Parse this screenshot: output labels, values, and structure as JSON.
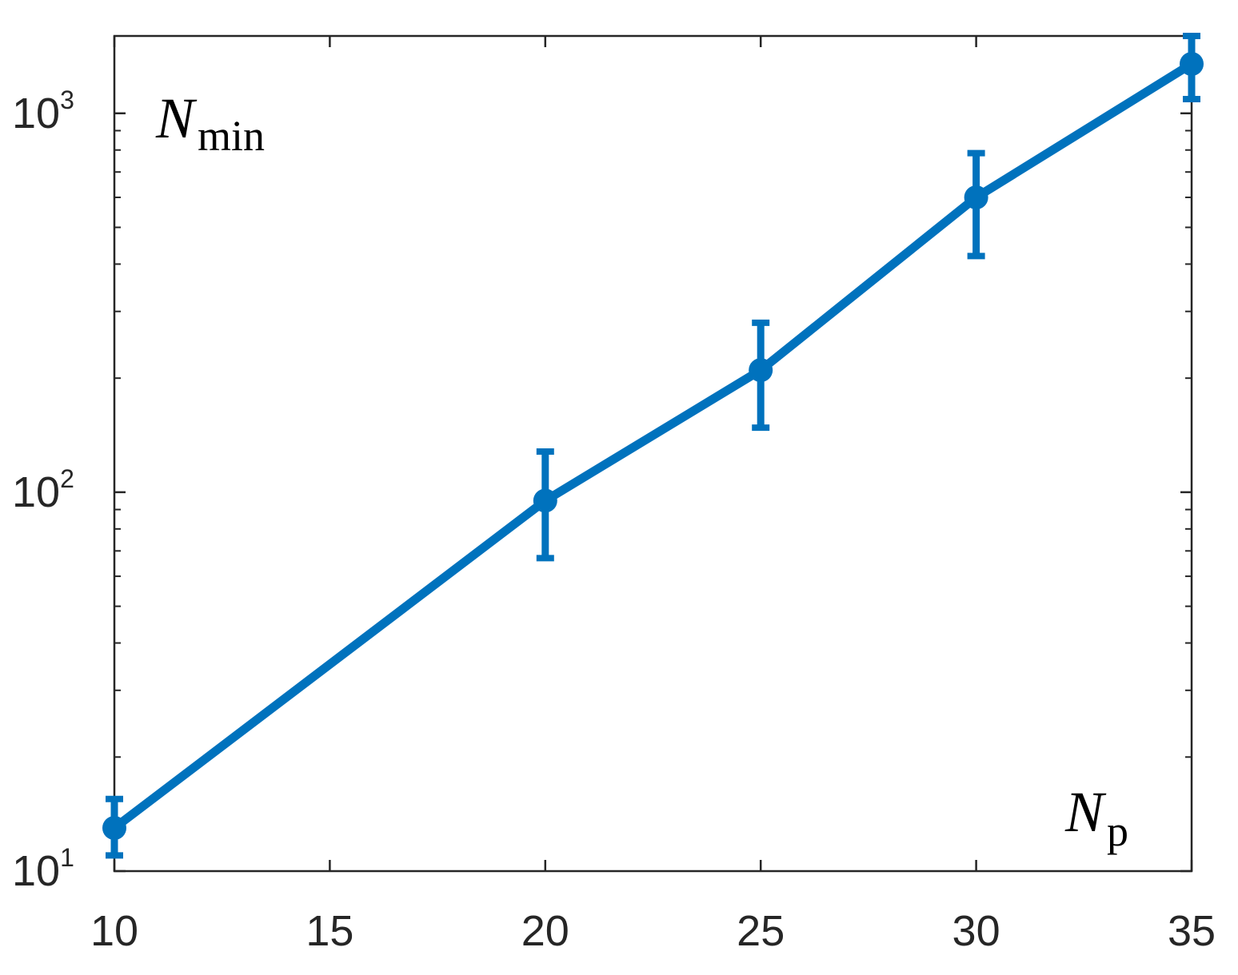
{
  "chart_data": {
    "type": "line",
    "title": "",
    "xlabel": {
      "main": "N",
      "sub": "p"
    },
    "ylabel": {
      "main": "N",
      "sub": "min"
    },
    "xlim": [
      10,
      35
    ],
    "ylim": [
      10,
      1600
    ],
    "yscale": "log",
    "grid": false,
    "color": "#0072BD",
    "x_ticks": [
      {
        "value": 10,
        "label": "10"
      },
      {
        "value": 15,
        "label": "15"
      },
      {
        "value": 20,
        "label": "20"
      },
      {
        "value": 25,
        "label": "25"
      },
      {
        "value": 30,
        "label": "30"
      },
      {
        "value": 35,
        "label": "35"
      }
    ],
    "y_ticks": [
      {
        "value": 10,
        "base": "10",
        "exp": "1"
      },
      {
        "value": 100,
        "base": "10",
        "exp": "2"
      },
      {
        "value": 1000,
        "base": "10",
        "exp": "3"
      }
    ],
    "series": [
      {
        "x": [
          10,
          20,
          25,
          30,
          35
        ],
        "y": [
          13,
          95,
          210,
          600,
          1350
        ],
        "y_lower": [
          11,
          67,
          148,
          420,
          1090
        ],
        "y_upper": [
          15.5,
          128,
          280,
          785,
          1600
        ]
      }
    ]
  }
}
